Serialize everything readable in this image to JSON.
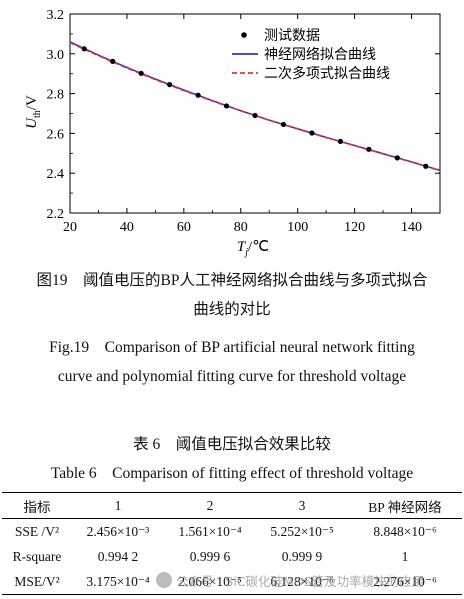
{
  "figure": {
    "caption_cn": "图19　阈值电压的BP人工神经网络拟合曲线与多项式拟合",
    "caption_cn_line2": "曲线的对比",
    "caption_en": "Fig.19　Comparison of BP artificial neural network fitting",
    "caption_en_line2": "curve and polynomial fitting curve for threshold voltage"
  },
  "chart_data": {
    "type": "scatter",
    "xlabel": "Tj/℃",
    "ylabel": "Uth/V",
    "xlim": [
      20,
      150
    ],
    "ylim": [
      2.2,
      3.2
    ],
    "xticks": [
      20,
      40,
      60,
      80,
      100,
      120,
      140
    ],
    "yticks": [
      2.2,
      2.4,
      2.6,
      2.8,
      3.0,
      3.2
    ],
    "grid": false,
    "legend_position": "top-right",
    "series": [
      {
        "name": "测试数据",
        "kind": "points",
        "color": "#000000",
        "x": [
          25,
          35,
          45,
          55,
          65,
          75,
          85,
          95,
          105,
          115,
          125,
          135,
          145
        ],
        "y": [
          3.025,
          2.962,
          2.902,
          2.845,
          2.792,
          2.738,
          2.69,
          2.645,
          2.602,
          2.56,
          2.52,
          2.477,
          2.435
        ]
      },
      {
        "name": "神经网络拟合曲线",
        "kind": "line",
        "color": "#3333cc",
        "x": [
          20,
          30,
          40,
          50,
          60,
          70,
          80,
          90,
          100,
          110,
          120,
          130,
          140,
          150
        ],
        "y": [
          3.06,
          2.993,
          2.931,
          2.873,
          2.818,
          2.765,
          2.714,
          2.667,
          2.623,
          2.58,
          2.539,
          2.498,
          2.457,
          2.414
        ]
      },
      {
        "name": "二次多项式拟合曲线",
        "kind": "dashed-line",
        "color": "#e8313c",
        "x": [
          20,
          30,
          40,
          50,
          60,
          70,
          80,
          90,
          100,
          110,
          120,
          130,
          140,
          150
        ],
        "y": [
          3.056,
          2.99,
          2.928,
          2.87,
          2.815,
          2.763,
          2.713,
          2.666,
          2.622,
          2.579,
          2.538,
          2.497,
          2.456,
          2.413
        ]
      }
    ]
  },
  "table": {
    "caption_cn": "表 6　阈值电压拟合效果比较",
    "caption_en": "Table 6　Comparison of fitting effect of threshold voltage",
    "headers": [
      "指标",
      "1",
      "2",
      "3",
      "BP 神经网络"
    ],
    "rows": [
      [
        "SSE /V²",
        "2.456×10⁻³",
        "1.561×10⁻⁴",
        "5.252×10⁻⁵",
        "8.848×10⁻⁶"
      ],
      [
        "R-square",
        "0.994 2",
        "0.999 6",
        "0.999 9",
        "1"
      ],
      [
        "MSE/V²",
        "3.175×10⁻⁴",
        "2.066×10⁻⁵",
        "6.128×10⁻⁶",
        "2.276×10⁻⁶"
      ]
    ]
  },
  "watermark": {
    "text": "公众号 · SiC碳化硅MOS管及功率模块的应用"
  }
}
